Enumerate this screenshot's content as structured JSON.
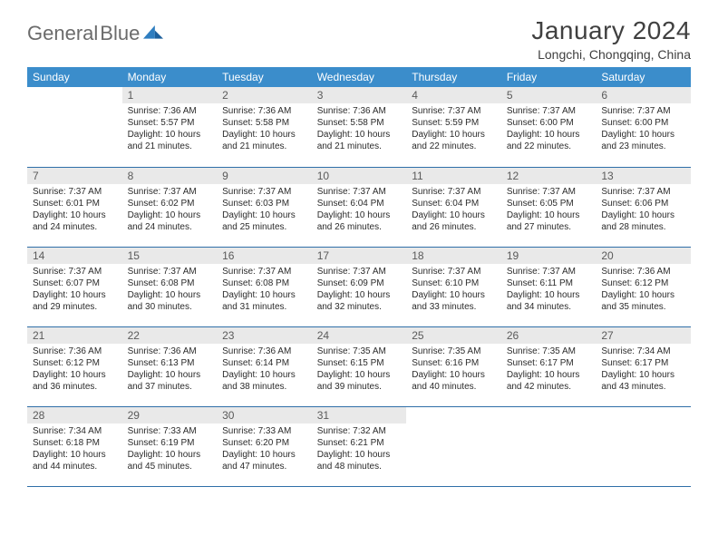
{
  "brand": {
    "word1": "General",
    "word2": "Blue"
  },
  "title": "January 2024",
  "location": "Longchi, Chongqing, China",
  "colors": {
    "header_bg": "#3b8dcb",
    "row_divider": "#2f6fa8",
    "daynum_bg": "#e9e9e9",
    "logo_gray": "#6b6b6b",
    "logo_blue": "#2f7ec0"
  },
  "weekdays": [
    "Sunday",
    "Monday",
    "Tuesday",
    "Wednesday",
    "Thursday",
    "Friday",
    "Saturday"
  ],
  "weeks": [
    [
      {
        "n": "",
        "sr": "",
        "ss": "",
        "dl": ""
      },
      {
        "n": "1",
        "sr": "7:36 AM",
        "ss": "5:57 PM",
        "dl": "10 hours and 21 minutes."
      },
      {
        "n": "2",
        "sr": "7:36 AM",
        "ss": "5:58 PM",
        "dl": "10 hours and 21 minutes."
      },
      {
        "n": "3",
        "sr": "7:36 AM",
        "ss": "5:58 PM",
        "dl": "10 hours and 21 minutes."
      },
      {
        "n": "4",
        "sr": "7:37 AM",
        "ss": "5:59 PM",
        "dl": "10 hours and 22 minutes."
      },
      {
        "n": "5",
        "sr": "7:37 AM",
        "ss": "6:00 PM",
        "dl": "10 hours and 22 minutes."
      },
      {
        "n": "6",
        "sr": "7:37 AM",
        "ss": "6:00 PM",
        "dl": "10 hours and 23 minutes."
      }
    ],
    [
      {
        "n": "7",
        "sr": "7:37 AM",
        "ss": "6:01 PM",
        "dl": "10 hours and 24 minutes."
      },
      {
        "n": "8",
        "sr": "7:37 AM",
        "ss": "6:02 PM",
        "dl": "10 hours and 24 minutes."
      },
      {
        "n": "9",
        "sr": "7:37 AM",
        "ss": "6:03 PM",
        "dl": "10 hours and 25 minutes."
      },
      {
        "n": "10",
        "sr": "7:37 AM",
        "ss": "6:04 PM",
        "dl": "10 hours and 26 minutes."
      },
      {
        "n": "11",
        "sr": "7:37 AM",
        "ss": "6:04 PM",
        "dl": "10 hours and 26 minutes."
      },
      {
        "n": "12",
        "sr": "7:37 AM",
        "ss": "6:05 PM",
        "dl": "10 hours and 27 minutes."
      },
      {
        "n": "13",
        "sr": "7:37 AM",
        "ss": "6:06 PM",
        "dl": "10 hours and 28 minutes."
      }
    ],
    [
      {
        "n": "14",
        "sr": "7:37 AM",
        "ss": "6:07 PM",
        "dl": "10 hours and 29 minutes."
      },
      {
        "n": "15",
        "sr": "7:37 AM",
        "ss": "6:08 PM",
        "dl": "10 hours and 30 minutes."
      },
      {
        "n": "16",
        "sr": "7:37 AM",
        "ss": "6:08 PM",
        "dl": "10 hours and 31 minutes."
      },
      {
        "n": "17",
        "sr": "7:37 AM",
        "ss": "6:09 PM",
        "dl": "10 hours and 32 minutes."
      },
      {
        "n": "18",
        "sr": "7:37 AM",
        "ss": "6:10 PM",
        "dl": "10 hours and 33 minutes."
      },
      {
        "n": "19",
        "sr": "7:37 AM",
        "ss": "6:11 PM",
        "dl": "10 hours and 34 minutes."
      },
      {
        "n": "20",
        "sr": "7:36 AM",
        "ss": "6:12 PM",
        "dl": "10 hours and 35 minutes."
      }
    ],
    [
      {
        "n": "21",
        "sr": "7:36 AM",
        "ss": "6:12 PM",
        "dl": "10 hours and 36 minutes."
      },
      {
        "n": "22",
        "sr": "7:36 AM",
        "ss": "6:13 PM",
        "dl": "10 hours and 37 minutes."
      },
      {
        "n": "23",
        "sr": "7:36 AM",
        "ss": "6:14 PM",
        "dl": "10 hours and 38 minutes."
      },
      {
        "n": "24",
        "sr": "7:35 AM",
        "ss": "6:15 PM",
        "dl": "10 hours and 39 minutes."
      },
      {
        "n": "25",
        "sr": "7:35 AM",
        "ss": "6:16 PM",
        "dl": "10 hours and 40 minutes."
      },
      {
        "n": "26",
        "sr": "7:35 AM",
        "ss": "6:17 PM",
        "dl": "10 hours and 42 minutes."
      },
      {
        "n": "27",
        "sr": "7:34 AM",
        "ss": "6:17 PM",
        "dl": "10 hours and 43 minutes."
      }
    ],
    [
      {
        "n": "28",
        "sr": "7:34 AM",
        "ss": "6:18 PM",
        "dl": "10 hours and 44 minutes."
      },
      {
        "n": "29",
        "sr": "7:33 AM",
        "ss": "6:19 PM",
        "dl": "10 hours and 45 minutes."
      },
      {
        "n": "30",
        "sr": "7:33 AM",
        "ss": "6:20 PM",
        "dl": "10 hours and 47 minutes."
      },
      {
        "n": "31",
        "sr": "7:32 AM",
        "ss": "6:21 PM",
        "dl": "10 hours and 48 minutes."
      },
      {
        "n": "",
        "sr": "",
        "ss": "",
        "dl": ""
      },
      {
        "n": "",
        "sr": "",
        "ss": "",
        "dl": ""
      },
      {
        "n": "",
        "sr": "",
        "ss": "",
        "dl": ""
      }
    ]
  ],
  "labels": {
    "sunrise": "Sunrise:",
    "sunset": "Sunset:",
    "daylight": "Daylight:"
  }
}
